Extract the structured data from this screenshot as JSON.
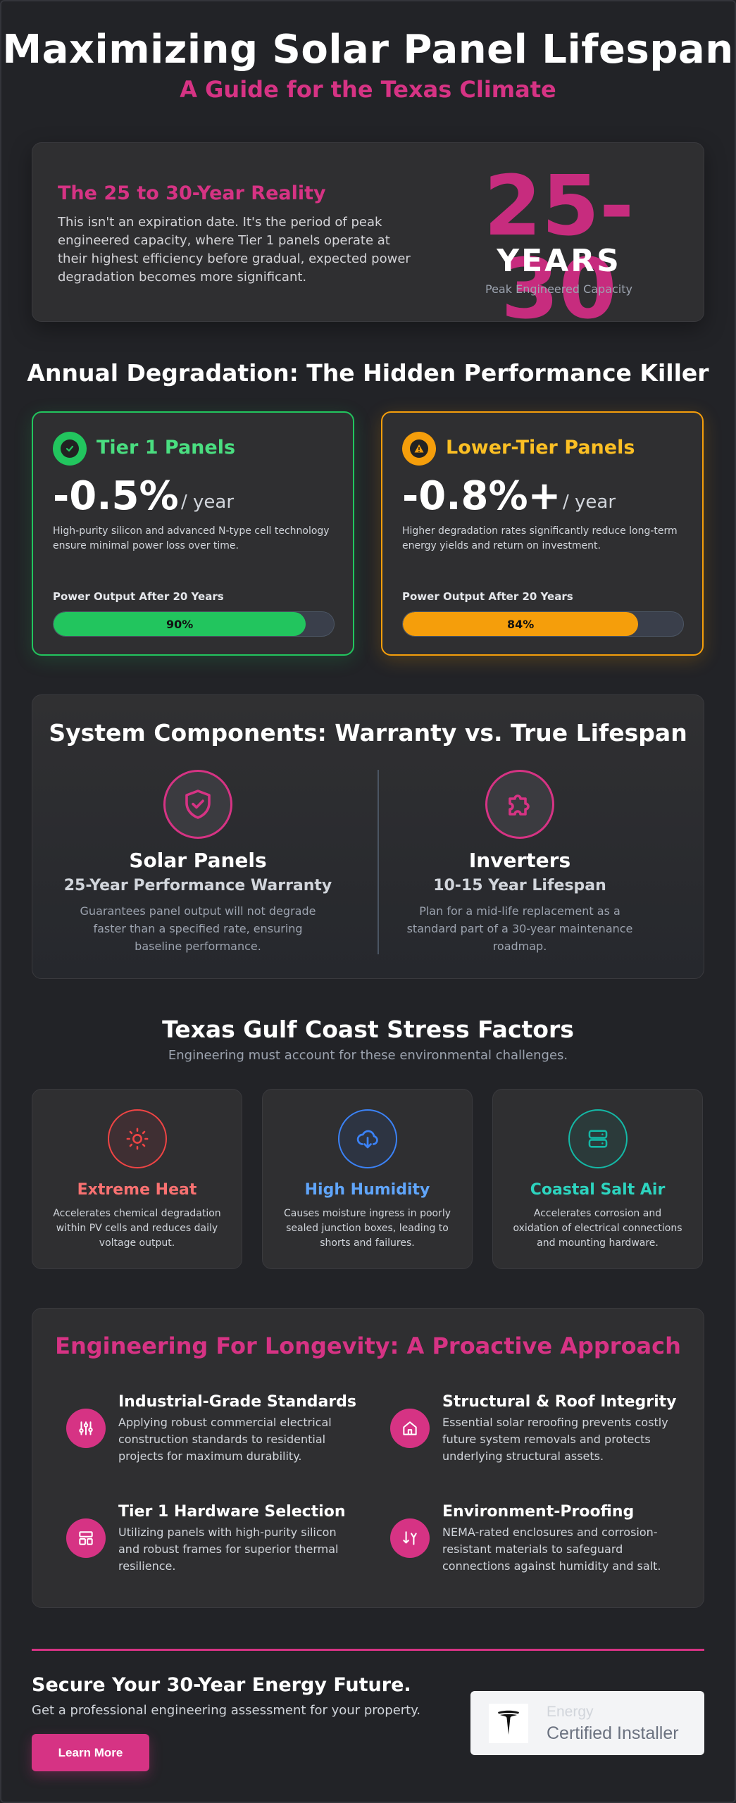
{
  "header": {
    "title": "Maximizing Solar Panel Lifespan",
    "subtitle": "A Guide for the Texas Climate"
  },
  "hero": {
    "heading": "The 25 to 30-Year Reality",
    "text": "This isn't an expiration date. It's the period of peak engineered capacity, where Tier 1 panels operate at their highest efficiency before gradual, expected power degradation becomes more significant.",
    "number": "25-30",
    "unit": "YEARS",
    "caption": "Peak Engineered Capacity"
  },
  "degradation": {
    "title": "Annual Degradation: The Hidden Performance Killer",
    "cards": [
      {
        "name": "Tier 1 Panels",
        "icon": "check-icon",
        "rate": "-0.5%",
        "per": "/ year",
        "desc": "High-purity silicon and advanced N-type cell technology ensure minimal power loss over time.",
        "output_label": "Power Output After 20 Years",
        "output_value": 90,
        "output_text": "90%",
        "color": "#22c55e"
      },
      {
        "name": "Lower-Tier Panels",
        "icon": "warning-icon",
        "rate": "-0.8%+",
        "per": "/ year",
        "desc": "Higher degradation rates significantly reduce long-term energy yields and return on investment.",
        "output_label": "Power Output After 20 Years",
        "output_value": 84,
        "output_text": "84%",
        "color": "#f59e0b"
      }
    ]
  },
  "components": {
    "title": "System Components: Warranty vs. True Lifespan",
    "items": [
      {
        "icon": "shield-check-icon",
        "name": "Solar Panels",
        "sub": "25-Year Performance Warranty",
        "desc": "Guarantees panel output will not degrade faster than a specified rate, ensuring baseline performance."
      },
      {
        "icon": "puzzle-icon",
        "name": "Inverters",
        "sub": "10-15 Year Lifespan",
        "desc": "Plan for a mid-life replacement as a standard part of a 30-year maintenance roadmap."
      }
    ]
  },
  "stress": {
    "title": "Texas Gulf Coast Stress Factors",
    "subtitle": "Engineering must account for these environmental challenges.",
    "items": [
      {
        "icon": "sun-icon",
        "name": "Extreme Heat",
        "desc": "Accelerates chemical degradation within PV cells and reduces daily voltage output.",
        "color": "#f87171"
      },
      {
        "icon": "cloud-download-icon",
        "name": "High Humidity",
        "desc": "Causes moisture ingress in poorly sealed junction boxes, leading to shorts and failures.",
        "color": "#60a5fa"
      },
      {
        "icon": "server-icon",
        "name": "Coastal Salt Air",
        "desc": "Accelerates corrosion and oxidation of electrical connections and mounting hardware.",
        "color": "#2dd4bf"
      }
    ]
  },
  "engineering": {
    "title": "Engineering For Longevity: A Proactive Approach",
    "items": [
      {
        "icon": "sliders-icon",
        "name": "Industrial-Grade Standards",
        "desc": "Applying robust commercial electrical construction standards to residential projects for maximum durability."
      },
      {
        "icon": "home-icon",
        "name": "Structural & Roof Integrity",
        "desc": "Essential solar reroofing prevents costly future system removals and protects underlying structural assets."
      },
      {
        "icon": "panel-icon",
        "name": "Tier 1 Hardware Selection",
        "desc": "Utilizing panels with high-purity silicon and robust frames for superior thermal resilience."
      },
      {
        "icon": "split-arrows-icon",
        "name": "Environment-Proofing",
        "desc": "NEMA-rated enclosures and corrosion-resistant materials to safeguard connections against humidity and salt."
      }
    ]
  },
  "footer": {
    "heading": "Secure Your 30-Year Energy Future.",
    "subtext": "Get a professional engineering assessment for your property.",
    "button": "Learn More",
    "badge_line1": "Energy",
    "badge_line2": "Certified Installer",
    "badge_logo": "tesla-logo"
  },
  "colors": {
    "accent": "#d63384",
    "background": "#222327",
    "card": "#2f2f31"
  }
}
